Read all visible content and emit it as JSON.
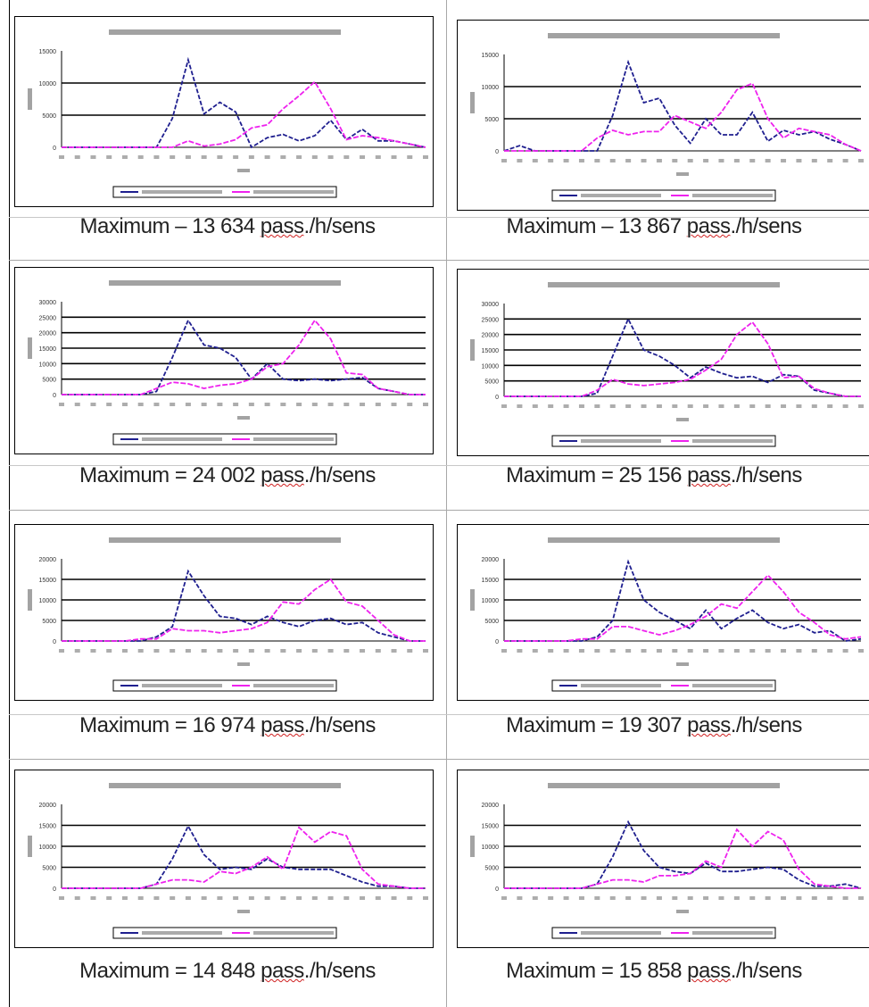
{
  "colors": {
    "dark_series": "#1f1f8f",
    "pink_series": "#ee22ee",
    "axis": "#000000"
  },
  "panels": [
    {
      "caption": {
        "prefix": "Maximum – 13 634 ",
        "underlined": "pass",
        "suffix": "./h/sens"
      },
      "chart_data": {
        "type": "line",
        "x": [
          0,
          1,
          2,
          3,
          4,
          5,
          6,
          7,
          8,
          9,
          10,
          11,
          12,
          13,
          14,
          15,
          16,
          17,
          18,
          19,
          20,
          21,
          22,
          23
        ],
        "ylim": [
          0,
          15000
        ],
        "yticks": [
          "15000",
          "10000",
          "5000",
          "0"
        ],
        "series": [
          {
            "color": "#1f1f8f",
            "values": [
              0,
              0,
              0,
              0,
              0,
              0,
              0,
              4500,
              13600,
              5200,
              7000,
              5500,
              0,
              1500,
              2000,
              1000,
              1800,
              4200,
              1200,
              2800,
              1000,
              1000,
              500,
              0
            ]
          },
          {
            "color": "#ee22ee",
            "values": [
              0,
              0,
              0,
              0,
              0,
              0,
              0,
              0,
              1000,
              200,
              500,
              1200,
              3000,
              3500,
              6000,
              8000,
              10200,
              6000,
              1200,
              1800,
              1500,
              1000,
              500,
              0
            ]
          }
        ]
      }
    },
    {
      "caption": {
        "prefix": "Maximum – 13 867 ",
        "underlined": "pass",
        "suffix": "./h/sens"
      },
      "chart_data": {
        "type": "line",
        "x": [
          0,
          1,
          2,
          3,
          4,
          5,
          6,
          7,
          8,
          9,
          10,
          11,
          12,
          13,
          14,
          15,
          16,
          17,
          18,
          19,
          20,
          21,
          22,
          23
        ],
        "ylim": [
          0,
          15000
        ],
        "yticks": [
          "15000",
          "10000",
          "5000",
          "0"
        ],
        "series": [
          {
            "color": "#1f1f8f",
            "values": [
              0,
              800,
              0,
              0,
              0,
              0,
              0,
              5500,
              13800,
              7500,
              8200,
              4000,
              1200,
              5000,
              2500,
              2500,
              6000,
              1500,
              3200,
              2500,
              3000,
              1800,
              1000,
              0
            ]
          },
          {
            "color": "#ee22ee",
            "values": [
              0,
              0,
              0,
              0,
              0,
              0,
              2000,
              3200,
              2500,
              3000,
              3000,
              5500,
              4500,
              3500,
              6000,
              9500,
              10500,
              5000,
              2000,
              3500,
              3000,
              2500,
              1000,
              0
            ]
          }
        ]
      }
    },
    {
      "caption": {
        "prefix": "Maximum = 24 002 ",
        "underlined": "pass",
        "suffix": "./h/sens"
      },
      "chart_data": {
        "type": "line",
        "x": [
          0,
          1,
          2,
          3,
          4,
          5,
          6,
          7,
          8,
          9,
          10,
          11,
          12,
          13,
          14,
          15,
          16,
          17,
          18,
          19,
          20,
          21,
          22,
          23
        ],
        "ylim": [
          0,
          30000
        ],
        "yticks": [
          "30000",
          "25000",
          "20000",
          "15000",
          "10000",
          "5000",
          "0"
        ],
        "series": [
          {
            "color": "#1f1f8f",
            "values": [
              0,
              0,
              0,
              0,
              0,
              0,
              1000,
              12000,
              24000,
              16000,
              15000,
              12000,
              5000,
              10000,
              5000,
              4500,
              5000,
              4500,
              5000,
              5500,
              2000,
              1000,
              0,
              0
            ]
          },
          {
            "color": "#ee22ee",
            "values": [
              0,
              0,
              0,
              0,
              0,
              0,
              2000,
              4000,
              3500,
              2000,
              3000,
              3500,
              5000,
              9000,
              10000,
              16000,
              24000,
              18000,
              7000,
              6500,
              2000,
              1000,
              0,
              0
            ]
          }
        ]
      }
    },
    {
      "caption": {
        "prefix": "Maximum = 25 156 ",
        "underlined": "pass",
        "suffix": "./h/sens"
      },
      "chart_data": {
        "type": "line",
        "x": [
          0,
          1,
          2,
          3,
          4,
          5,
          6,
          7,
          8,
          9,
          10,
          11,
          12,
          13,
          14,
          15,
          16,
          17,
          18,
          19,
          20,
          21,
          22,
          23
        ],
        "ylim": [
          0,
          30000
        ],
        "yticks": [
          "30000",
          "25000",
          "20000",
          "15000",
          "10000",
          "5000",
          "0"
        ],
        "series": [
          {
            "color": "#1f1f8f",
            "values": [
              0,
              0,
              0,
              0,
              0,
              0,
              1000,
              13000,
              25000,
              15000,
              13000,
              10000,
              6000,
              9500,
              7500,
              6000,
              6500,
              4500,
              7000,
              6500,
              2000,
              1000,
              0,
              0
            ]
          },
          {
            "color": "#ee22ee",
            "values": [
              0,
              0,
              0,
              0,
              0,
              0,
              2000,
              5500,
              4000,
              3500,
              4000,
              4500,
              5500,
              8500,
              12000,
              20000,
              24000,
              17000,
              6000,
              6500,
              2500,
              1000,
              0,
              0
            ]
          }
        ]
      }
    },
    {
      "caption": {
        "prefix": "Maximum = 16 974 ",
        "underlined": "pass",
        "suffix": "./h/sens"
      },
      "chart_data": {
        "type": "line",
        "x": [
          0,
          1,
          2,
          3,
          4,
          5,
          6,
          7,
          8,
          9,
          10,
          11,
          12,
          13,
          14,
          15,
          16,
          17,
          18,
          19,
          20,
          21,
          22,
          23
        ],
        "ylim": [
          0,
          20000
        ],
        "yticks": [
          "20000",
          "15000",
          "10000",
          "5000",
          "0"
        ],
        "series": [
          {
            "color": "#1f1f8f",
            "values": [
              0,
              0,
              0,
              0,
              0,
              0,
              1000,
              3500,
              17000,
              11000,
              6000,
              5500,
              4000,
              6000,
              4500,
              3500,
              5000,
              5500,
              4000,
              4500,
              2000,
              1000,
              0,
              0
            ]
          },
          {
            "color": "#ee22ee",
            "values": [
              0,
              0,
              0,
              0,
              0,
              500,
              500,
              3000,
              2500,
              2500,
              2000,
              2500,
              3000,
              4500,
              9500,
              9000,
              12500,
              15000,
              9500,
              8500,
              5000,
              1500,
              0,
              0
            ]
          }
        ]
      }
    },
    {
      "caption": {
        "prefix": "Maximum = 19 307 ",
        "underlined": "pass",
        "suffix": "./h/sens"
      },
      "chart_data": {
        "type": "line",
        "x": [
          0,
          1,
          2,
          3,
          4,
          5,
          6,
          7,
          8,
          9,
          10,
          11,
          12,
          13,
          14,
          15,
          16,
          17,
          18,
          19,
          20,
          21,
          22,
          23
        ],
        "ylim": [
          0,
          20000
        ],
        "yticks": [
          "20000",
          "15000",
          "10000",
          "5000",
          "0"
        ],
        "series": [
          {
            "color": "#1f1f8f",
            "values": [
              0,
              0,
              0,
              0,
              0,
              0,
              1000,
              5000,
              19300,
              10000,
              7000,
              5000,
              3000,
              7500,
              3000,
              5500,
              7500,
              4500,
              3000,
              4000,
              2000,
              2500,
              0,
              500
            ]
          },
          {
            "color": "#ee22ee",
            "values": [
              0,
              0,
              0,
              0,
              0,
              500,
              500,
              3500,
              3500,
              2500,
              1500,
              2500,
              4000,
              6000,
              9000,
              8000,
              12000,
              16000,
              12000,
              7000,
              4500,
              1500,
              500,
              1000
            ]
          }
        ]
      }
    },
    {
      "caption": {
        "prefix": "Maximum = 14 848 ",
        "underlined": "pass",
        "suffix": "./h/sens"
      },
      "chart_data": {
        "type": "line",
        "x": [
          0,
          1,
          2,
          3,
          4,
          5,
          6,
          7,
          8,
          9,
          10,
          11,
          12,
          13,
          14,
          15,
          16,
          17,
          18,
          19,
          20,
          21,
          22,
          23
        ],
        "ylim": [
          0,
          20000
        ],
        "yticks": [
          "20000",
          "15000",
          "10000",
          "5000",
          "0"
        ],
        "series": [
          {
            "color": "#1f1f8f",
            "values": [
              0,
              0,
              0,
              0,
              0,
              0,
              1000,
              7000,
              14800,
              8000,
              4500,
              5000,
              4500,
              7000,
              5000,
              4500,
              4500,
              4500,
              3000,
              1500,
              500,
              500,
              0,
              0
            ]
          },
          {
            "color": "#ee22ee",
            "values": [
              0,
              0,
              0,
              0,
              0,
              0,
              1000,
              2000,
              2000,
              1500,
              4000,
              3500,
              5000,
              7500,
              4500,
              14500,
              11000,
              13500,
              12500,
              4500,
              1000,
              500,
              0,
              0
            ]
          }
        ]
      }
    },
    {
      "caption": {
        "prefix": "Maximum = 15 858 ",
        "underlined": "pass",
        "suffix": "./h/sens"
      },
      "chart_data": {
        "type": "line",
        "x": [
          0,
          1,
          2,
          3,
          4,
          5,
          6,
          7,
          8,
          9,
          10,
          11,
          12,
          13,
          14,
          15,
          16,
          17,
          18,
          19,
          20,
          21,
          22,
          23
        ],
        "ylim": [
          0,
          20000
        ],
        "yticks": [
          "20000",
          "15000",
          "10000",
          "5000",
          "0"
        ],
        "series": [
          {
            "color": "#1f1f8f",
            "values": [
              0,
              0,
              0,
              0,
              0,
              0,
              1000,
              7500,
              15800,
              9000,
              5000,
              4000,
              3500,
              6000,
              4000,
              4000,
              4500,
              5000,
              4500,
              2000,
              500,
              500,
              1000,
              0
            ]
          },
          {
            "color": "#ee22ee",
            "values": [
              0,
              0,
              0,
              0,
              0,
              0,
              1000,
              2000,
              2000,
              1500,
              3000,
              3000,
              3500,
              6500,
              5000,
              14000,
              10000,
              13500,
              11500,
              4500,
              1000,
              500,
              0,
              0
            ]
          }
        ]
      }
    }
  ]
}
